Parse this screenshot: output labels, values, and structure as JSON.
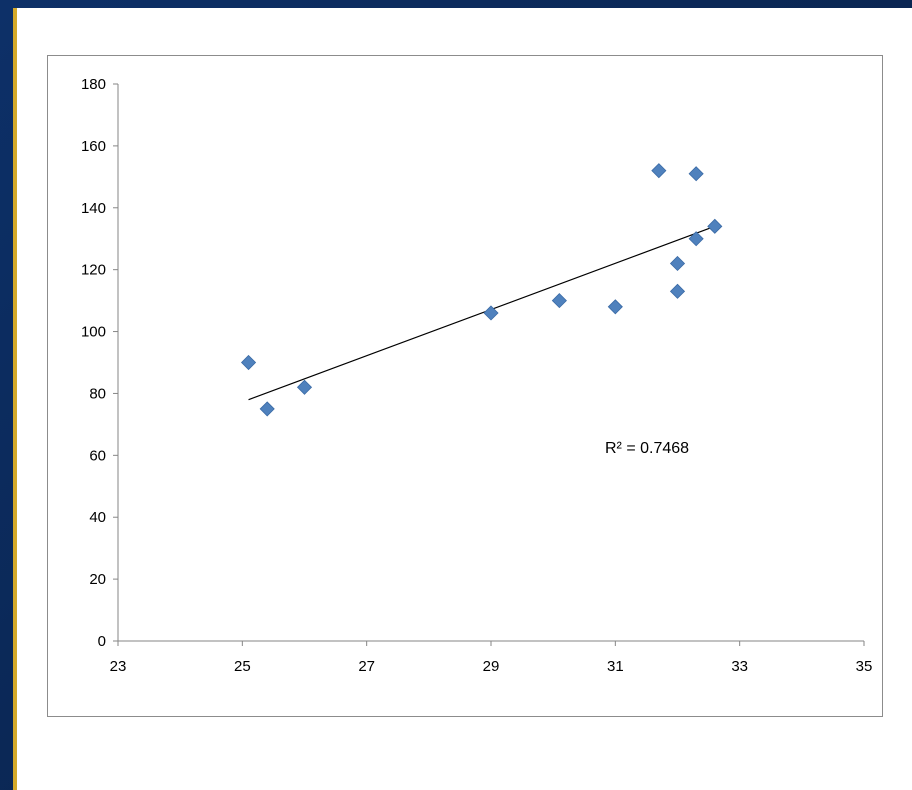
{
  "chart_data": {
    "type": "scatter",
    "title": "",
    "xlabel": "",
    "ylabel": "",
    "xlim": [
      23,
      35
    ],
    "ylim": [
      0,
      180
    ],
    "xticks": [
      23,
      25,
      27,
      29,
      31,
      33,
      35
    ],
    "yticks": [
      0,
      20,
      40,
      60,
      80,
      100,
      120,
      140,
      160,
      180
    ],
    "grid": false,
    "legend": false,
    "marker_color": "#4f81bd",
    "series": [
      {
        "x": [
          25.1,
          25.4,
          26.0,
          29.0,
          30.1,
          31.0,
          31.7,
          32.0,
          32.0,
          32.3,
          32.3,
          32.6
        ],
        "y": [
          90,
          75,
          82,
          106,
          110,
          108,
          152,
          122,
          113,
          151,
          130,
          134
        ]
      }
    ],
    "trendline": {
      "x": [
        25.1,
        32.6
      ],
      "y": [
        78,
        134
      ]
    },
    "annotation": "R² = 0.7468"
  },
  "colors": {
    "background": "#0b2a55",
    "accent": "#d4a92a",
    "marker": "#4f81bd",
    "trendline": "#000000"
  }
}
